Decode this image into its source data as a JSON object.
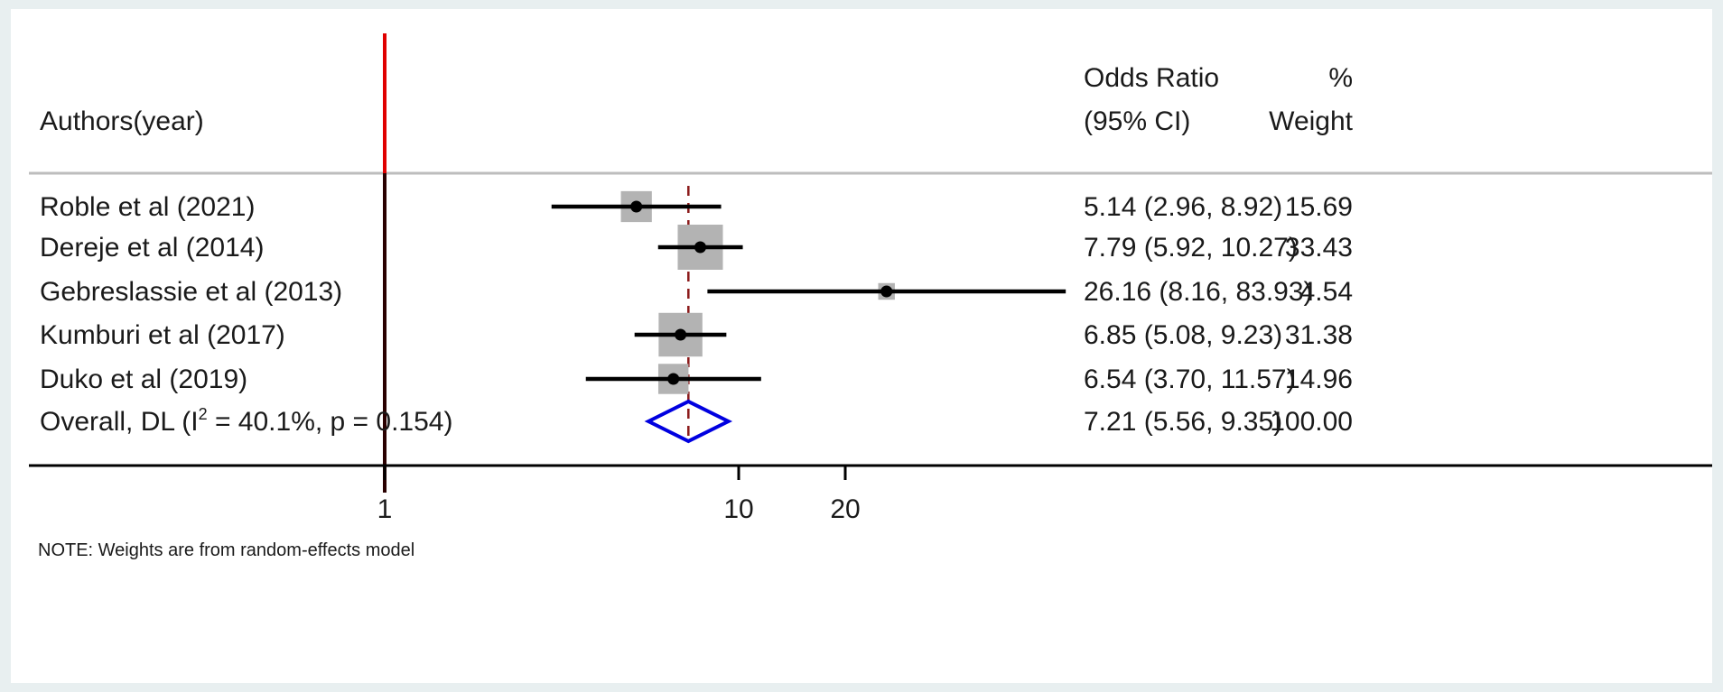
{
  "chart_data": {
    "type": "forest",
    "header": {
      "study": "Authors(year)",
      "effect_line1": "Odds Ratio",
      "effect_line2": "(95% CI)",
      "weight_line1": "%",
      "weight_line2": "Weight"
    },
    "studies": [
      {
        "label": "Roble et al (2021)",
        "or": 5.14,
        "lo": 2.96,
        "hi": 8.92,
        "ci_text": "5.14 (2.96, 8.92)",
        "weight": 15.69,
        "weight_text": "15.69"
      },
      {
        "label": "Dereje et al (2014)",
        "or": 7.79,
        "lo": 5.92,
        "hi": 10.27,
        "ci_text": "7.79 (5.92, 10.27)",
        "weight": 33.43,
        "weight_text": "33.43"
      },
      {
        "label": "Gebreslassie et al (2013)",
        "or": 26.16,
        "lo": 8.16,
        "hi": 83.93,
        "ci_text": "26.16 (8.16, 83.93)",
        "weight": 4.54,
        "weight_text": "4.54"
      },
      {
        "label": "Kumburi et al (2017)",
        "or": 6.85,
        "lo": 5.08,
        "hi": 9.23,
        "ci_text": "6.85 (5.08, 9.23)",
        "weight": 31.38,
        "weight_text": "31.38"
      },
      {
        "label": "Duko et al (2019)",
        "or": 6.54,
        "lo": 3.7,
        "hi": 11.57,
        "ci_text": "6.54 (3.70, 11.57)",
        "weight": 14.96,
        "weight_text": "14.96"
      }
    ],
    "overall": {
      "label_prefix": "Overall, DL (I",
      "label_sup": "2",
      "label_suffix": " = 40.1%, p = 0.154)",
      "or": 7.21,
      "lo": 5.56,
      "hi": 9.35,
      "ci_text": "7.21 (5.56, 9.35)",
      "weight_text": "100.00"
    },
    "x_scale": "log",
    "x_ticks": [
      1,
      10,
      20
    ],
    "x_tick_labels": [
      "1",
      "10",
      "20"
    ],
    "reference_line": 1,
    "note": "NOTE: Weights are from random-effects model",
    "colors": {
      "reference_line": "#e00000",
      "pooled_line": "#8b1a1a",
      "diamond": "#0000e0",
      "weight_box": "#b3b3b3",
      "point": "#000000",
      "separator": "#bdbdbd"
    }
  }
}
